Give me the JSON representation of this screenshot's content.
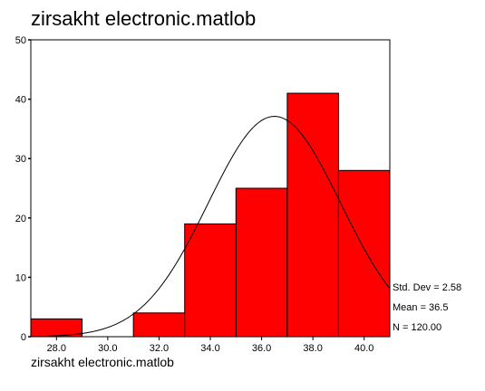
{
  "chart_data": {
    "type": "bar",
    "title": "zirsakht electronic.matlob",
    "xlabel": "zirsakht electronic.matlob",
    "ylabel": "",
    "bin_width": 2.0,
    "bins": [
      {
        "center": 28.0,
        "count": 3
      },
      {
        "center": 30.0,
        "count": 0
      },
      {
        "center": 32.0,
        "count": 4
      },
      {
        "center": 34.0,
        "count": 19
      },
      {
        "center": 36.0,
        "count": 25
      },
      {
        "center": 38.0,
        "count": 41
      },
      {
        "center": 40.0,
        "count": 28
      }
    ],
    "x_ticks": [
      "28.0",
      "30.0",
      "32.0",
      "34.0",
      "36.0",
      "38.0",
      "40.0"
    ],
    "y_ticks": [
      0,
      10,
      20,
      30,
      40,
      50
    ],
    "xlim": [
      27.0,
      41.0
    ],
    "ylim": [
      0,
      50
    ],
    "bar_color": "#ff0000",
    "curve": {
      "type": "normal",
      "mean": 36.5,
      "std": 2.58,
      "n": 120
    },
    "stats": {
      "std_label": "Std. Dev = 2.58",
      "mean_label": "Mean = 36.5",
      "n_label": "N = 120.00"
    }
  }
}
